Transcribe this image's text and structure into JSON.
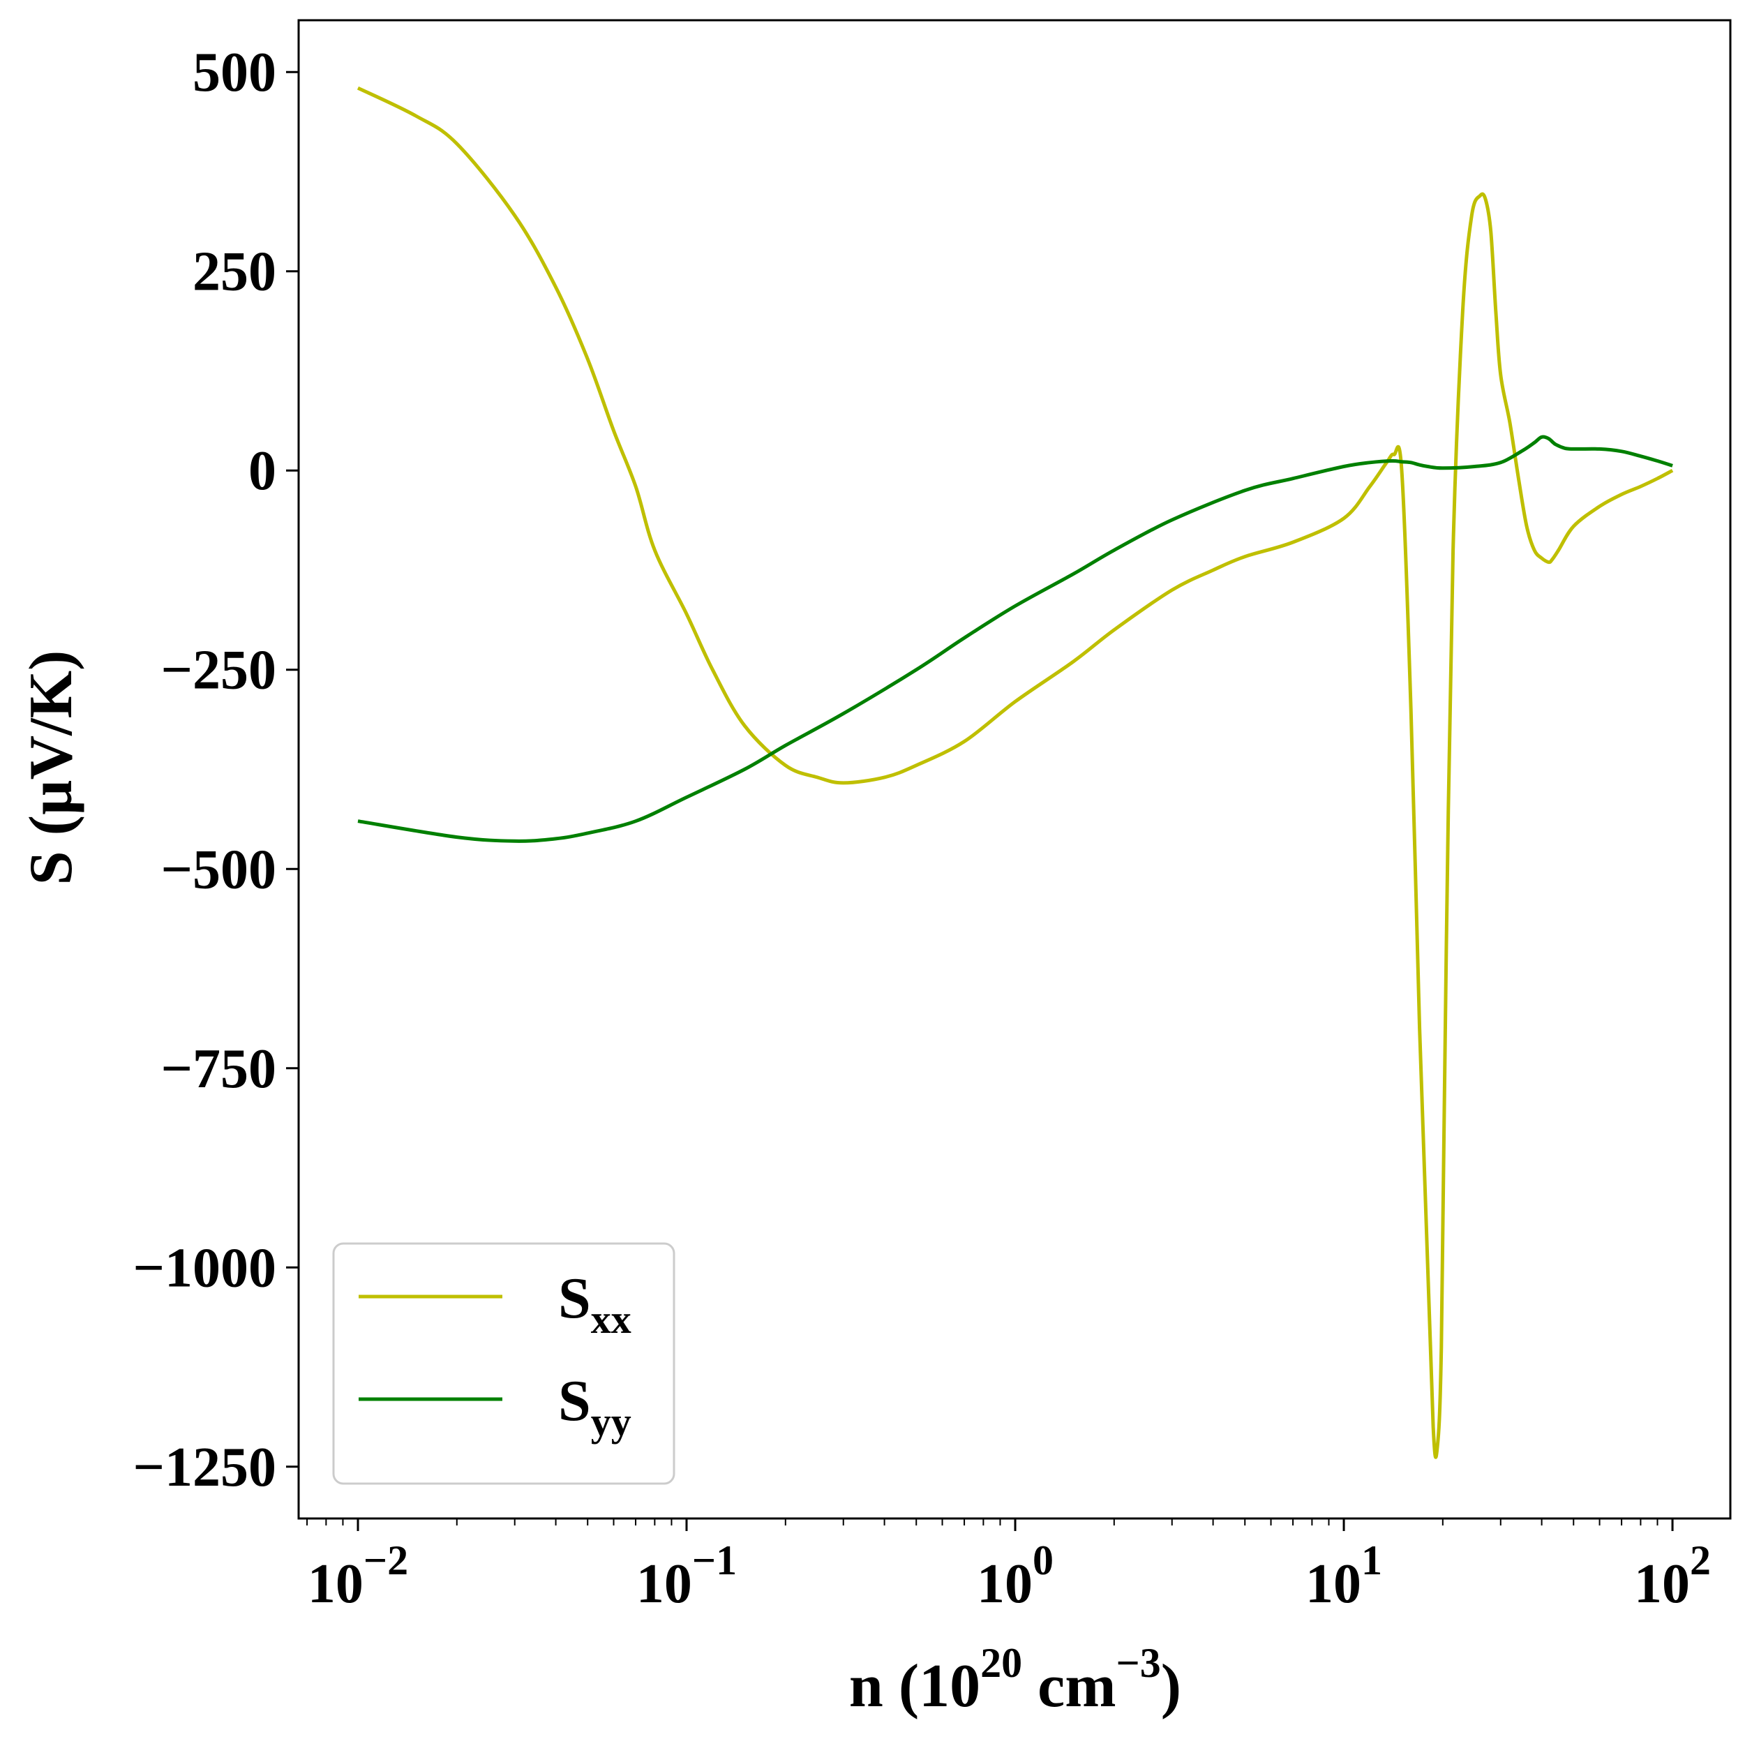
{
  "chart_data": {
    "type": "line",
    "xscale": "log",
    "xlim": [
      0.0066,
      150
    ],
    "ylim": [
      -1315,
      565
    ],
    "grid": false,
    "legend_position": "lower-left",
    "xlabel": {
      "main": "n (10",
      "sup1": "20",
      "mid": " cm",
      "sup2": "−3",
      "end": ")"
    },
    "ylabel": "S (µV/K)",
    "y_ticks": [
      {
        "value": 500,
        "label": "500"
      },
      {
        "value": 250,
        "label": "250"
      },
      {
        "value": 0,
        "label": "0"
      },
      {
        "value": -250,
        "label": "−250"
      },
      {
        "value": -500,
        "label": "−500"
      },
      {
        "value": -750,
        "label": "−750"
      },
      {
        "value": -1000,
        "label": "−1000"
      },
      {
        "value": -1250,
        "label": "−1250"
      }
    ],
    "x_ticks": [
      {
        "value": 0.01,
        "base": "10",
        "exp": "−2"
      },
      {
        "value": 0.1,
        "base": "10",
        "exp": "−1"
      },
      {
        "value": 1,
        "base": "10",
        "exp": "0"
      },
      {
        "value": 10,
        "base": "10",
        "exp": "1"
      },
      {
        "value": 100,
        "base": "10",
        "exp": "2"
      }
    ],
    "series": [
      {
        "name": "S",
        "sub": "xx",
        "color": "#bfbf00",
        "x": [
          0.01,
          0.015,
          0.02,
          0.03,
          0.04,
          0.05,
          0.06,
          0.07,
          0.08,
          0.1,
          0.12,
          0.15,
          0.2,
          0.25,
          0.3,
          0.4,
          0.5,
          0.7,
          1,
          1.5,
          2,
          3,
          4,
          5,
          7,
          10,
          12,
          13.5,
          14.2,
          15,
          16,
          17,
          18,
          18.7,
          19.2,
          19.8,
          20.5,
          21.5,
          23,
          24.5,
          26,
          27,
          28,
          29,
          30,
          32,
          34,
          36,
          38,
          40,
          42,
          43,
          45,
          50,
          60,
          70,
          80,
          90,
          100
        ],
        "y": [
          480,
          445,
          410,
          320,
          230,
          140,
          50,
          -20,
          -100,
          -180,
          -250,
          -320,
          -370,
          -385,
          -392,
          -385,
          -370,
          -340,
          -290,
          -240,
          -200,
          -150,
          -125,
          -108,
          -90,
          -60,
          -20,
          10,
          20,
          0,
          -300,
          -700,
          -1000,
          -1200,
          -1230,
          -1100,
          -600,
          -100,
          200,
          320,
          345,
          340,
          300,
          200,
          120,
          60,
          -10,
          -70,
          -100,
          -110,
          -115,
          -112,
          -100,
          -70,
          -45,
          -30,
          -20,
          -10,
          0
        ]
      },
      {
        "name": "S",
        "sub": "yy",
        "color": "#008000",
        "x": [
          0.01,
          0.02,
          0.03,
          0.04,
          0.05,
          0.07,
          0.1,
          0.15,
          0.2,
          0.3,
          0.5,
          0.7,
          1,
          1.5,
          2,
          3,
          5,
          7,
          10,
          12,
          14,
          15,
          16,
          17,
          18,
          20,
          25,
          30,
          35,
          38,
          40,
          42,
          44,
          47,
          50,
          60,
          70,
          80,
          90,
          100
        ],
        "y": [
          -440,
          -460,
          -465,
          -462,
          -455,
          -440,
          -410,
          -375,
          -345,
          -305,
          -250,
          -210,
          -170,
          -130,
          -100,
          -62,
          -25,
          -10,
          5,
          10,
          12,
          11,
          10,
          7,
          5,
          3,
          5,
          10,
          25,
          35,
          42,
          40,
          33,
          28,
          27,
          27,
          24,
          18,
          12,
          6
        ]
      }
    ]
  }
}
